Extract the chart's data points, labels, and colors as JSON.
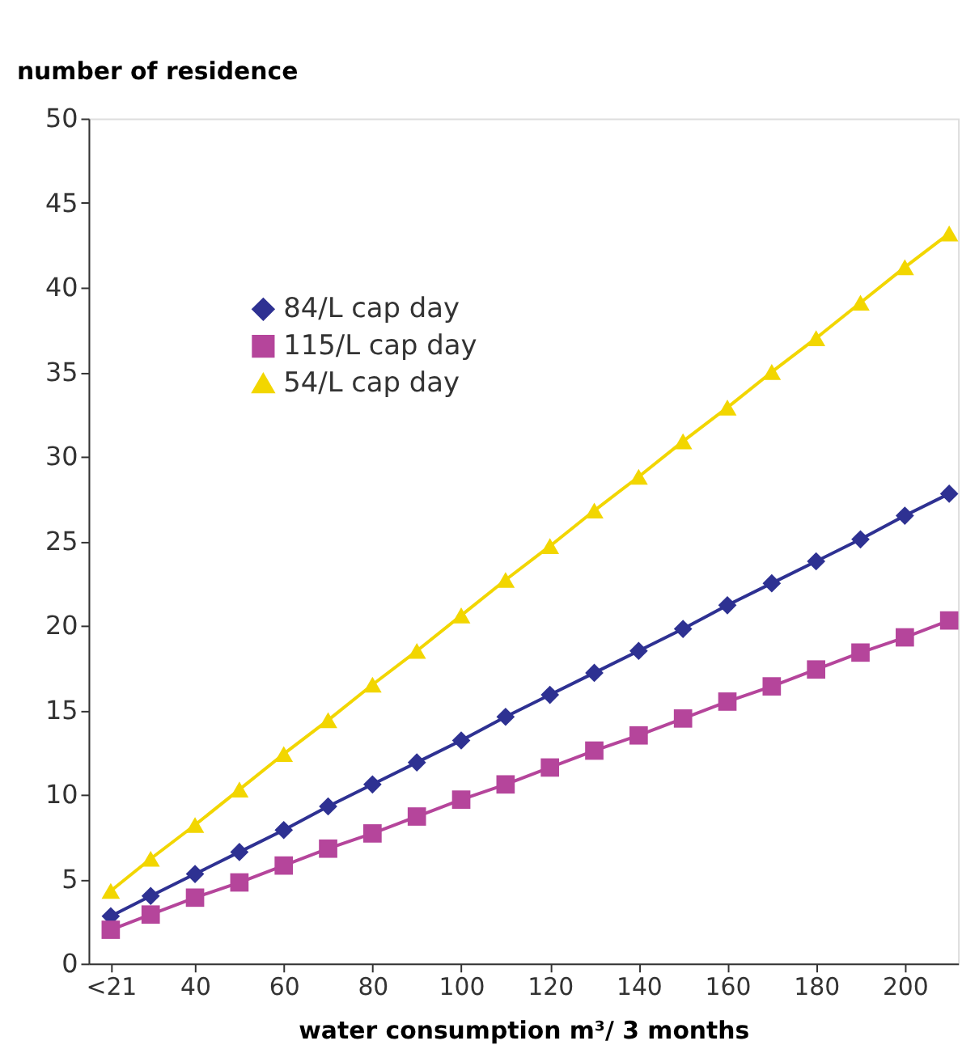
{
  "chart_data": {
    "type": "line",
    "xlabel": "water consumption m³/ 3 months",
    "ylabel": "number of residence",
    "x": [
      21,
      30,
      40,
      50,
      60,
      70,
      80,
      90,
      100,
      110,
      120,
      130,
      140,
      150,
      160,
      170,
      180,
      190,
      200,
      210
    ],
    "xlim": [
      16,
      212
    ],
    "xticks": [
      {
        "value": 21,
        "label": "<21"
      },
      40,
      60,
      80,
      100,
      120,
      140,
      160,
      180,
      200
    ],
    "ylim": [
      0,
      50
    ],
    "yticks": [
      0,
      5,
      10,
      15,
      20,
      25,
      30,
      35,
      40,
      45,
      50
    ],
    "grid": false,
    "legend": "top left",
    "line_style": "solid",
    "series": [
      {
        "name": "84/L cap day",
        "color": "#2e3192",
        "marker": "diamond",
        "values": [
          2.8,
          4.0,
          5.3,
          6.6,
          7.9,
          9.3,
          10.6,
          11.9,
          13.2,
          14.6,
          15.9,
          17.2,
          18.5,
          19.8,
          21.2,
          22.5,
          23.8,
          25.1,
          26.5,
          27.8
        ]
      },
      {
        "name": "115/L cap day",
        "color": "#b5459b",
        "marker": "square",
        "values": [
          2.0,
          2.9,
          3.9,
          4.8,
          5.8,
          6.8,
          7.7,
          8.7,
          9.7,
          10.6,
          11.6,
          12.6,
          13.5,
          14.5,
          15.5,
          16.4,
          17.4,
          18.4,
          19.3,
          20.3
        ]
      },
      {
        "name": "54/L cap day",
        "color": "#f2d600",
        "marker": "triangle",
        "values": [
          4.3,
          6.2,
          8.2,
          10.3,
          12.4,
          14.4,
          16.5,
          18.5,
          20.6,
          22.7,
          24.7,
          26.8,
          28.8,
          30.9,
          32.9,
          35.0,
          37.0,
          39.1,
          41.2,
          43.2
        ]
      }
    ]
  }
}
